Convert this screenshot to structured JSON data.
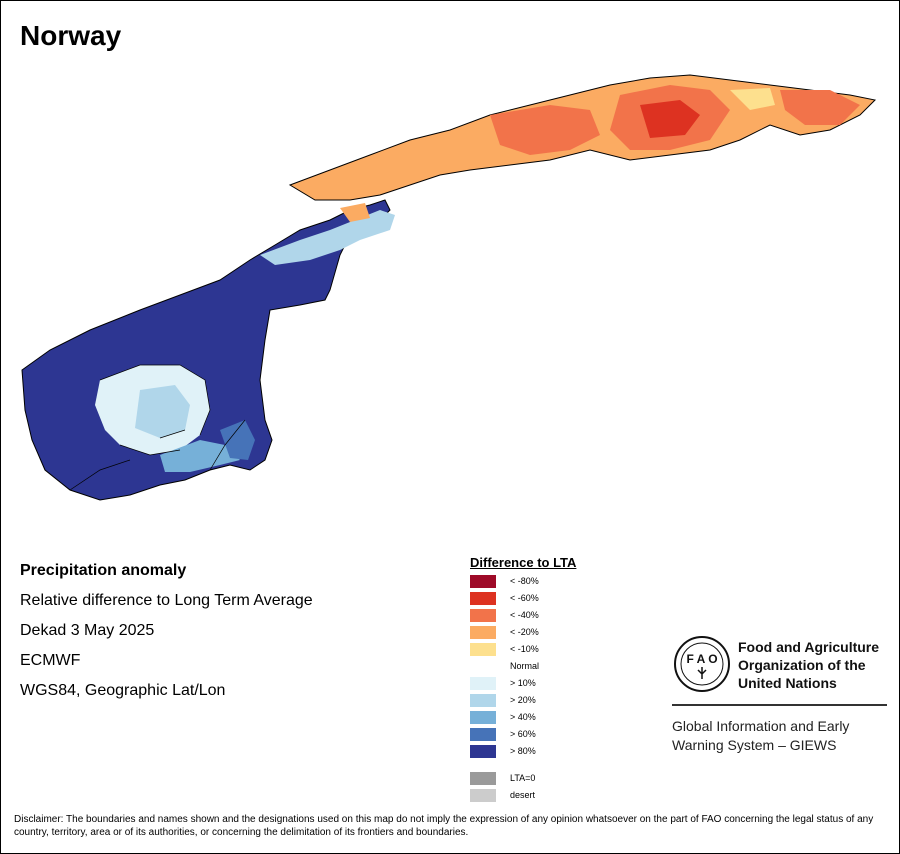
{
  "title": "Norway",
  "info": {
    "heading": "Precipitation anomaly",
    "line1": "Relative difference to Long Term Average",
    "line2": "Dekad 3 May 2025",
    "line3": "ECMWF",
    "line4": "WGS84, Geographic Lat/Lon"
  },
  "legend": {
    "title": "Difference to LTA",
    "items": [
      {
        "label": "< -80%",
        "color": "#9e0a28"
      },
      {
        "label": "< -60%",
        "color": "#dd3221"
      },
      {
        "label": "< -40%",
        "color": "#f2734a"
      },
      {
        "label": "< -20%",
        "color": "#fbab62"
      },
      {
        "label": "< -10%",
        "color": "#fde08e"
      },
      {
        "label": "Normal",
        "color": "#ffffff"
      },
      {
        "label": "> 10%",
        "color": "#e0f2f8"
      },
      {
        "label": "> 20%",
        "color": "#b0d6ea"
      },
      {
        "label": "> 40%",
        "color": "#76b0d8"
      },
      {
        "label": "> 60%",
        "color": "#4673b8"
      },
      {
        "label": "> 80%",
        "color": "#2d3692"
      }
    ],
    "extra": [
      {
        "label": "LTA=0",
        "color": "#9a9a9a"
      },
      {
        "label": "desert",
        "color": "#cccccc"
      }
    ]
  },
  "org": {
    "line1": "Food and Agriculture",
    "line2": "Organization of the",
    "line3": "United Nations",
    "logo_text": "FAO FIAT PANIS",
    "system1": "Global Information and Early",
    "system2": "Warning System – GIEWS"
  },
  "disclaimer": "Disclaimer: The boundaries and names shown and the designations used on this map do not imply the expression of any opinion whatsoever on the part of FAO concerning the legal status of any country, territory, area or of its authorities, or concerning the delimitation of its frontiers and boundaries."
}
